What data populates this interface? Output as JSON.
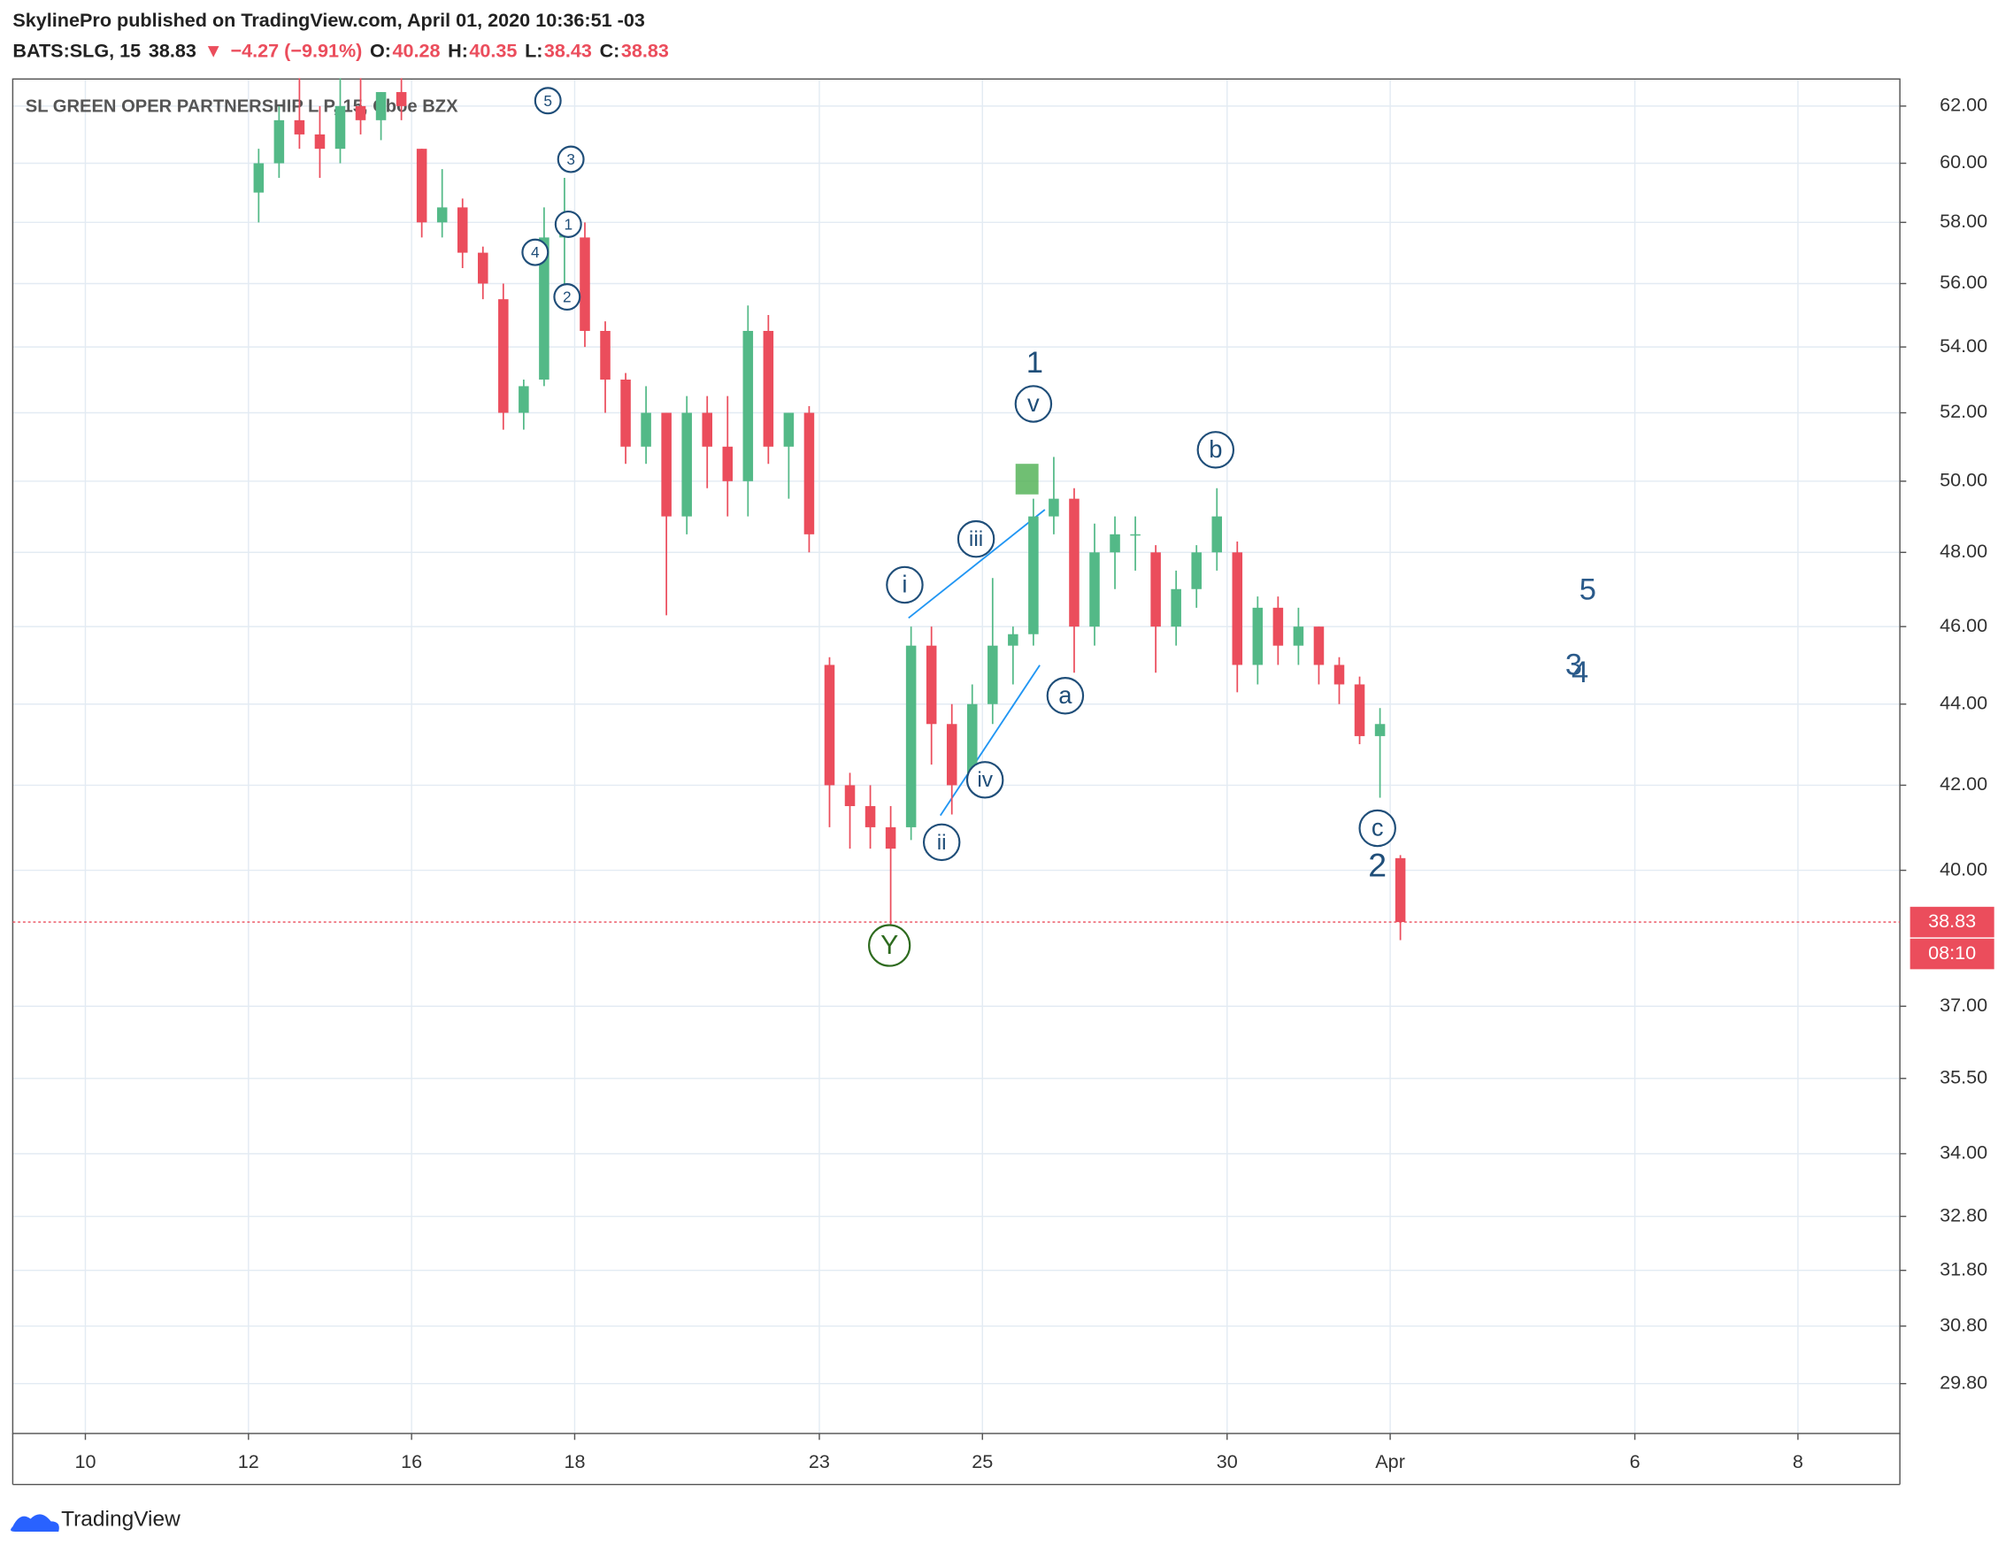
{
  "header": {
    "publisher": "SkylinePro published on TradingView.com, April 01, 2020 10:36:51 -03",
    "symbol": "BATS:SLG, 15",
    "last": 38.83,
    "arrow": "▼",
    "change": "−4.27 (−9.91%)",
    "o_label": "O:",
    "open": 40.28,
    "h_label": "H:",
    "high": 40.35,
    "l_label": "L:",
    "low": 38.43,
    "c_label": "C:",
    "close": 38.83
  },
  "footer": {
    "brand": "TradingView"
  },
  "chart_data": {
    "type": "candlestick",
    "title": "SL GREEN OPER PARTNERSHIP L P, 15, Cboe BZX",
    "categories": [
      "10",
      null,
      "12",
      null,
      "16",
      null,
      "18",
      null,
      null,
      "23",
      null,
      "25",
      null,
      null,
      "30",
      null,
      "Apr",
      null,
      null,
      "6",
      null,
      "8"
    ],
    "log_scale": true,
    "grid": true,
    "up_color": "#53b987",
    "down_color": "#eb4d5c",
    "ylim": [
      28.96,
      62.97
    ],
    "yticks": [
      {
        "value": 62,
        "label": "62.00"
      },
      {
        "value": 60,
        "label": "60.00"
      },
      {
        "value": 58,
        "label": "58.00"
      },
      {
        "value": 56,
        "label": "56.00"
      },
      {
        "value": 54,
        "label": "54.00"
      },
      {
        "value": 52,
        "label": "52.00"
      },
      {
        "value": 50,
        "label": "50.00"
      },
      {
        "value": 48,
        "label": "48.00"
      },
      {
        "value": 46,
        "label": "46.00"
      },
      {
        "value": 44,
        "label": "44.00"
      },
      {
        "value": 42,
        "label": "42.00"
      },
      {
        "value": 40,
        "label": "40.00"
      },
      {
        "value": 37,
        "label": "37.00"
      },
      {
        "value": 35.5,
        "label": "35.50"
      },
      {
        "value": 34,
        "label": "34.00"
      },
      {
        "value": 32.8,
        "label": "32.80"
      },
      {
        "value": 31.8,
        "label": "31.80"
      },
      {
        "value": 30.8,
        "label": "30.80"
      },
      {
        "value": 29.8,
        "label": "29.80"
      }
    ],
    "last_price": {
      "value": 38.83,
      "label": "38.83",
      "countdown": "08:10"
    },
    "open": [
      59,
      60,
      61.5,
      61,
      60.5,
      62,
      61.5,
      62.5,
      60.5,
      58,
      58.5,
      57,
      55.5,
      52,
      53,
      57.5,
      57.5,
      54.5,
      53,
      51,
      52,
      49,
      52,
      51,
      50,
      54.5,
      51,
      52,
      45,
      42,
      41.5,
      41,
      41,
      45.5,
      43.5,
      42,
      44,
      45.5,
      45.8,
      49,
      49.5,
      46,
      48,
      48.5,
      48,
      46,
      47,
      48,
      48,
      45,
      46.5,
      45.5,
      46,
      45,
      44.5,
      43.2,
      40.28
    ],
    "high": [
      60.5,
      62,
      63,
      62,
      63,
      63,
      62.5,
      63,
      60.5,
      59.8,
      58.8,
      57.2,
      56,
      53,
      58.5,
      59.5,
      58,
      54.8,
      53.2,
      52.8,
      52,
      52.5,
      52.5,
      52.5,
      55.3,
      55,
      52,
      52.2,
      45.2,
      42.3,
      42,
      41.5,
      46,
      46,
      44,
      44.5,
      47.3,
      46,
      49.5,
      50.7,
      49.8,
      48.8,
      49,
      49,
      48.2,
      47.5,
      48.2,
      49.8,
      48.3,
      46.8,
      46.8,
      46.5,
      46,
      45.2,
      44.7,
      43.9,
      40.35
    ],
    "low": [
      58,
      59.5,
      60.5,
      59.5,
      60,
      61,
      60.8,
      61.5,
      57.5,
      57.5,
      56.5,
      55.5,
      51.5,
      51.5,
      52.8,
      56,
      54,
      52,
      50.5,
      50.5,
      46.3,
      48.5,
      49.8,
      49,
      49,
      50.5,
      49.5,
      48,
      41,
      40.5,
      40.5,
      38.7,
      40.7,
      42.5,
      41.3,
      42,
      43.5,
      44.5,
      45.5,
      48.5,
      44.8,
      45.5,
      47,
      47.5,
      44.8,
      45.5,
      46.5,
      47.5,
      44.3,
      44.5,
      45,
      45,
      44.5,
      44,
      43,
      41.7,
      38.43
    ],
    "close": [
      60,
      61.5,
      61,
      60.5,
      62,
      61.5,
      62.5,
      62,
      58,
      58.5,
      57,
      56,
      52,
      52.8,
      57.5,
      58,
      54.5,
      53,
      51,
      52,
      49,
      52,
      51,
      50,
      54.5,
      51,
      52,
      48.5,
      42,
      41.5,
      41,
      40.5,
      45.5,
      43.5,
      42,
      44,
      45.5,
      45.8,
      49,
      49.5,
      46,
      48,
      48.5,
      48.5,
      46,
      47,
      48,
      49,
      45,
      46.5,
      45.5,
      46,
      45,
      44.5,
      43.2,
      43.5,
      38.83
    ],
    "annotations": [
      "5",
      "3",
      "1",
      "4",
      "2",
      "1",
      "v",
      "iii",
      "i",
      "ii",
      "iv",
      "a",
      "b",
      "c",
      "2",
      "Y",
      "5",
      "3",
      "4"
    ]
  }
}
